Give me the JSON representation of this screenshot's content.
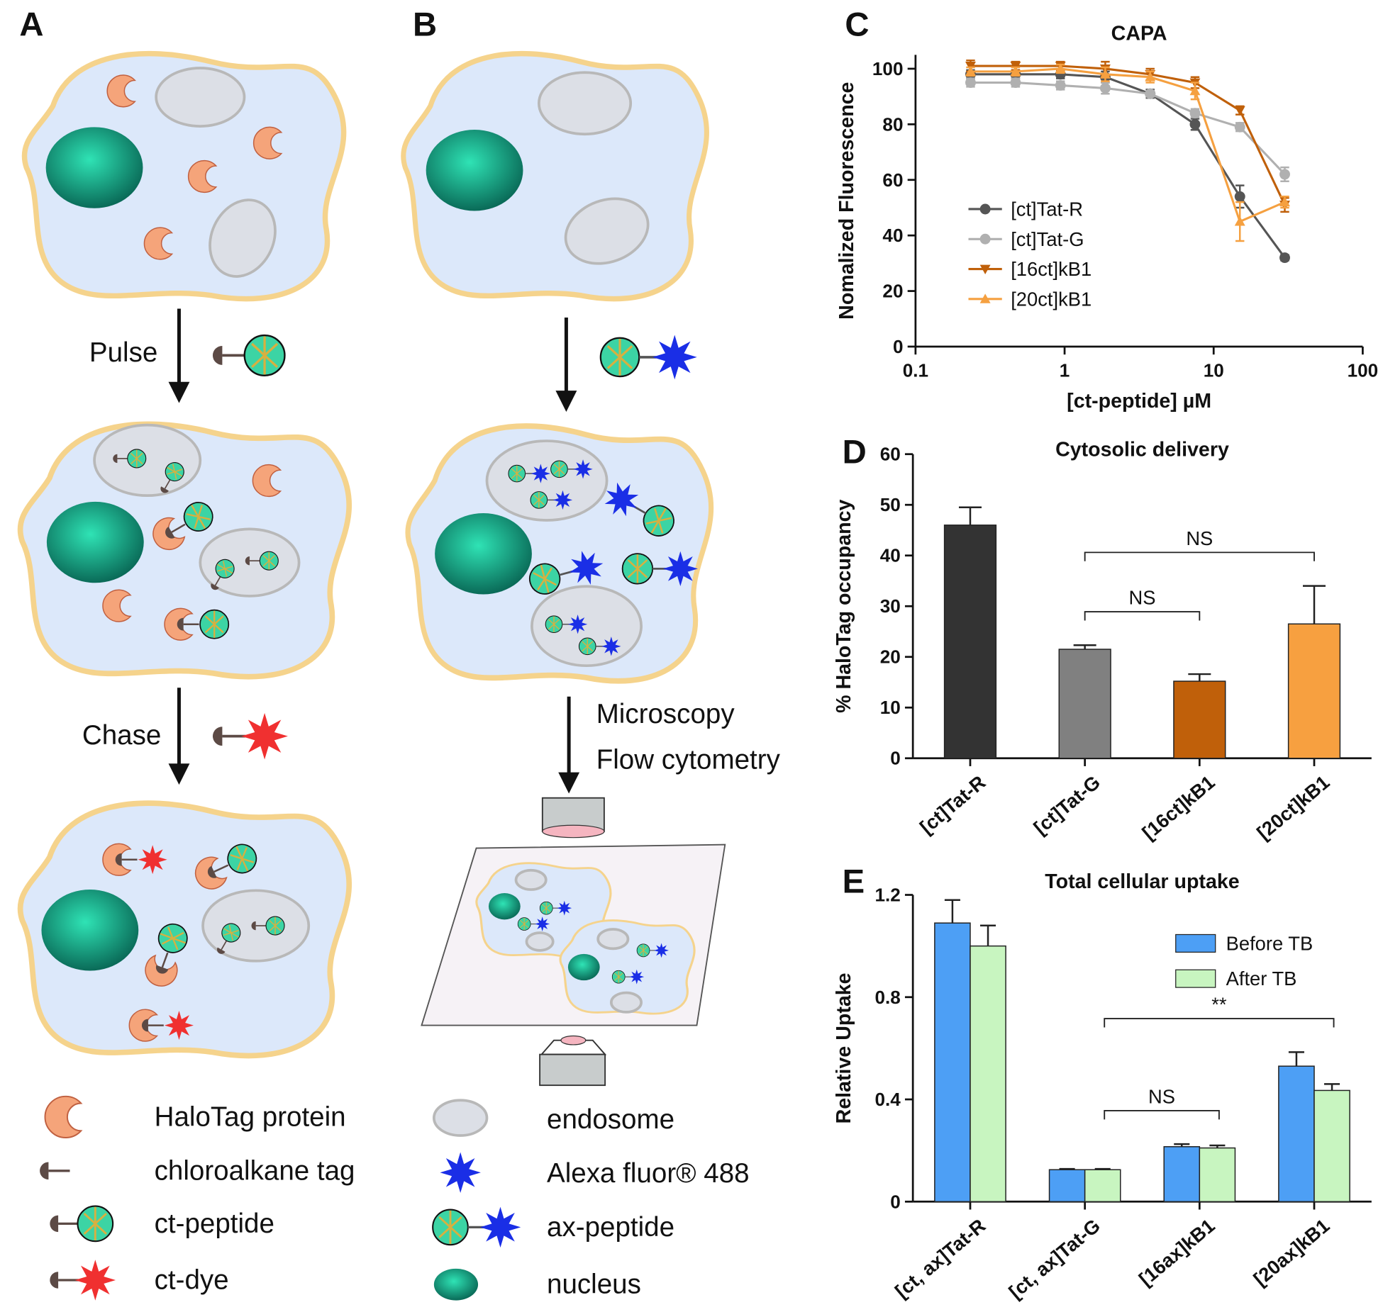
{
  "diagram": {
    "panels": [
      "A",
      "B"
    ],
    "steps": [
      "Pulse",
      "Chase",
      "Microscopy",
      "Flow cytometry"
    ],
    "legend_a": [
      "HaloTag protein",
      "chloroalkane tag",
      "ct-peptide",
      "ct-dye"
    ],
    "legend_b": [
      "endosome",
      "Alexa fluor® 488",
      "ax-peptide",
      "nucleus"
    ]
  },
  "chart_data": [
    {
      "panel": "C",
      "type": "line",
      "title": "CAPA",
      "xlabel": "[ct-peptide] µM",
      "ylabel": "Nomalized Fluorescence",
      "xlog": true,
      "xlim": [
        0.1,
        100
      ],
      "xticks": [
        0.1,
        1,
        10,
        100
      ],
      "ylim": [
        0,
        105
      ],
      "yticks": [
        0,
        20,
        40,
        60,
        80,
        100
      ],
      "legend": "center left",
      "x": [
        0.234,
        0.469,
        0.938,
        1.875,
        3.75,
        7.5,
        15,
        30
      ],
      "series": [
        {
          "name": "[ct]Tat-R",
          "color": "#555555",
          "marker": "circle",
          "values": [
            98,
            98,
            98,
            97,
            91,
            80,
            54,
            32
          ],
          "errors": [
            1.5,
            1.5,
            1.5,
            2,
            1.5,
            2,
            4,
            1
          ]
        },
        {
          "name": "[ct]Tat-G",
          "color": "#b0b0b0",
          "marker": "circle",
          "values": [
            95,
            95,
            94,
            93,
            91,
            84,
            79,
            62
          ],
          "errors": [
            1.5,
            1.5,
            1.5,
            2,
            1,
            1.5,
            1.5,
            2.5
          ]
        },
        {
          "name": "[16ct]kB1",
          "color": "#c0600a",
          "marker": "triangle-down",
          "values": [
            101,
            101,
            101,
            100,
            98,
            95,
            85,
            51
          ],
          "errors": [
            2,
            1.5,
            1.5,
            2.5,
            2,
            2,
            1.5,
            2.5
          ]
        },
        {
          "name": "[20ct]kB1",
          "color": "#f5a040",
          "marker": "triangle-up",
          "values": [
            99,
            99,
            100,
            98,
            97,
            92,
            45,
            52
          ],
          "errors": [
            1.5,
            1.5,
            1.5,
            2.5,
            2,
            3,
            7,
            2
          ]
        }
      ]
    },
    {
      "panel": "D",
      "type": "bar",
      "title": "Cytosolic delivery",
      "ylabel": "% HaloTag occupancy",
      "ylim": [
        0,
        60
      ],
      "yticks": [
        0,
        10,
        20,
        30,
        40,
        50,
        60
      ],
      "categories": [
        "[ct]Tat-R",
        "[ct]Tat-G",
        "[16ct]kB1",
        "[20ct]kB1"
      ],
      "values": [
        46,
        21.5,
        15.2,
        26.5
      ],
      "errors": [
        3.5,
        0.8,
        1.4,
        7.5
      ],
      "colors": [
        "#333333",
        "#808080",
        "#c0600a",
        "#f7a040"
      ],
      "significance": [
        {
          "from": 1,
          "to": 2,
          "label": "NS"
        },
        {
          "from": 1,
          "to": 3,
          "label": "NS"
        }
      ]
    },
    {
      "panel": "E",
      "type": "bar",
      "title": "Total cellular uptake",
      "ylabel": "Relative Uptake",
      "ylim": [
        0,
        1.2
      ],
      "yticks": [
        0,
        0.4,
        0.8,
        1.2
      ],
      "legend": "upper right",
      "categories": [
        "[ct, ax]Tat-R",
        "[ct, ax]Tat-G",
        "[16ax]kB1",
        "[20ax]kB1"
      ],
      "series": [
        {
          "name": "Before TB",
          "color": "#4d9ff5",
          "values": [
            1.09,
            0.125,
            0.215,
            0.53
          ],
          "errors": [
            0.09,
            0.003,
            0.01,
            0.055
          ]
        },
        {
          "name": "After TB",
          "color": "#c8f5c0",
          "values": [
            1.0,
            0.125,
            0.21,
            0.435
          ],
          "errors": [
            0.08,
            0.003,
            0.01,
            0.025
          ]
        }
      ],
      "significance": [
        {
          "from": 1,
          "to": 2,
          "label": "NS"
        },
        {
          "from": 1,
          "to": 3,
          "label": "**"
        }
      ]
    }
  ]
}
